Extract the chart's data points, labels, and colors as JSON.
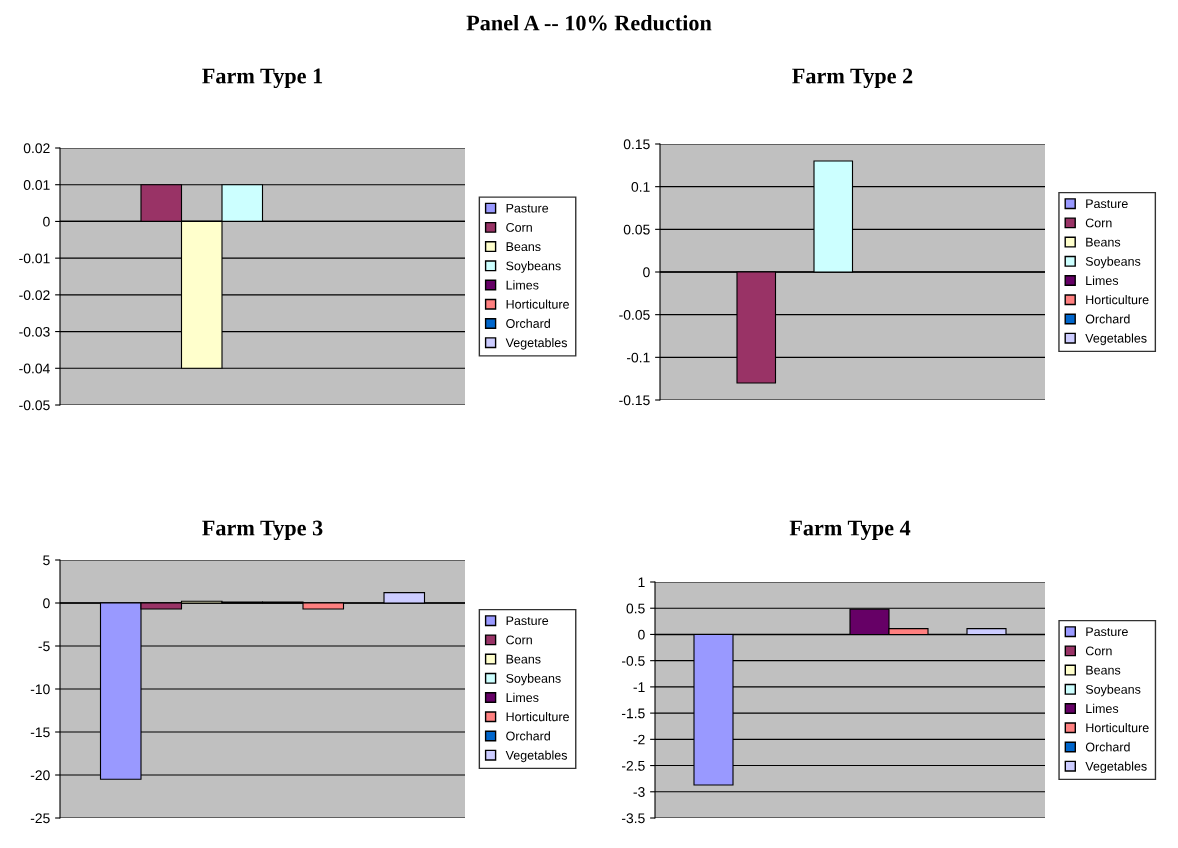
{
  "chart_data": [
    {
      "type": "bar",
      "title": "Farm Type 1",
      "annotations": [
        "Panel A -- 10% Reduction"
      ],
      "categories": [
        null
      ],
      "legend": "right",
      "grid": "y",
      "ylim": [
        -0.05,
        0.02
      ],
      "yticks": [
        -0.05,
        -0.04,
        -0.03,
        -0.02,
        -0.01,
        0,
        0.01,
        0.02
      ],
      "series": [
        {
          "name": "Pasture",
          "color": "#9999ff",
          "values": [
            null
          ]
        },
        {
          "name": "Corn",
          "color": "#993366",
          "values": [
            0.01
          ]
        },
        {
          "name": "Beans",
          "color": "#ffffcc",
          "values": [
            -0.04
          ]
        },
        {
          "name": "Soybeans",
          "color": "#ccffff",
          "values": [
            0.01
          ]
        },
        {
          "name": "Limes",
          "color": "#660066",
          "values": [
            null
          ]
        },
        {
          "name": "Horticulture",
          "color": "#ff8080",
          "values": [
            null
          ]
        },
        {
          "name": "Orchard",
          "color": "#0066cc",
          "values": [
            null
          ]
        },
        {
          "name": "Vegetables",
          "color": "#ccccff",
          "values": [
            null
          ]
        }
      ]
    },
    {
      "type": "bar",
      "title": "Farm Type 2",
      "categories": [
        null
      ],
      "legend": "right",
      "grid": "y",
      "ylim": [
        -0.15,
        0.15
      ],
      "yticks": [
        -0.15,
        -0.1,
        -0.05,
        0,
        0.05,
        0.1,
        0.15
      ],
      "series": [
        {
          "name": "Pasture",
          "color": "#9999ff",
          "values": [
            null
          ]
        },
        {
          "name": "Corn",
          "color": "#993366",
          "values": [
            -0.13
          ]
        },
        {
          "name": "Beans",
          "color": "#ffffcc",
          "values": [
            null
          ]
        },
        {
          "name": "Soybeans",
          "color": "#ccffff",
          "values": [
            0.13
          ]
        },
        {
          "name": "Limes",
          "color": "#660066",
          "values": [
            null
          ]
        },
        {
          "name": "Horticulture",
          "color": "#ff8080",
          "values": [
            null
          ]
        },
        {
          "name": "Orchard",
          "color": "#0066cc",
          "values": [
            null
          ]
        },
        {
          "name": "Vegetables",
          "color": "#ccccff",
          "values": [
            null
          ]
        }
      ]
    },
    {
      "type": "bar",
      "title": "Farm Type 3",
      "categories": [
        null
      ],
      "legend": "right",
      "grid": "y",
      "ylim": [
        -25,
        5
      ],
      "yticks": [
        -25,
        -20,
        -15,
        -10,
        -5,
        0,
        5
      ],
      "series": [
        {
          "name": "Pasture",
          "color": "#9999ff",
          "values": [
            -20.5
          ]
        },
        {
          "name": "Corn",
          "color": "#993366",
          "values": [
            -0.7
          ]
        },
        {
          "name": "Beans",
          "color": "#ffffcc",
          "values": [
            0.2
          ]
        },
        {
          "name": "Soybeans",
          "color": "#ccffff",
          "values": [
            0.1
          ]
        },
        {
          "name": "Limes",
          "color": "#660066",
          "values": [
            0.1
          ]
        },
        {
          "name": "Horticulture",
          "color": "#ff8080",
          "values": [
            -0.7
          ]
        },
        {
          "name": "Orchard",
          "color": "#0066cc",
          "values": [
            null
          ]
        },
        {
          "name": "Vegetables",
          "color": "#ccccff",
          "values": [
            1.2
          ]
        }
      ]
    },
    {
      "type": "bar",
      "title": "Farm Type 4",
      "categories": [
        null
      ],
      "legend": "right",
      "grid": "y",
      "ylim": [
        -3.5,
        1
      ],
      "yticks": [
        -3.5,
        -3,
        -2.5,
        -2,
        -1.5,
        -1,
        -0.5,
        0,
        0.5,
        1
      ],
      "series": [
        {
          "name": "Pasture",
          "color": "#9999ff",
          "values": [
            -2.87
          ]
        },
        {
          "name": "Corn",
          "color": "#993366",
          "values": [
            null
          ]
        },
        {
          "name": "Beans",
          "color": "#ffffcc",
          "values": [
            null
          ]
        },
        {
          "name": "Soybeans",
          "color": "#ccffff",
          "values": [
            null
          ]
        },
        {
          "name": "Limes",
          "color": "#660066",
          "values": [
            0.48
          ]
        },
        {
          "name": "Horticulture",
          "color": "#ff8080",
          "values": [
            0.11
          ]
        },
        {
          "name": "Orchard",
          "color": "#0066cc",
          "values": [
            null
          ]
        },
        {
          "name": "Vegetables",
          "color": "#ccccff",
          "values": [
            0.11
          ]
        }
      ]
    }
  ]
}
